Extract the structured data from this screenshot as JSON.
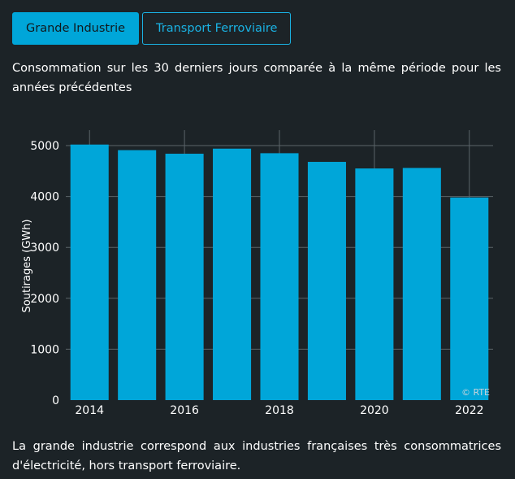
{
  "tabs": [
    {
      "label": "Grande Industrie",
      "active": true
    },
    {
      "label": "Transport Ferroviaire",
      "active": false
    }
  ],
  "intro_text": "Consommation sur les 30 derniers jours comparée à la même période pour les années précédentes",
  "footer_text": "La grande industrie correspond aux industries françaises très consommatrices d'électricité, hors transport ferroviaire.",
  "watermark": "© RTE",
  "colors": {
    "background": "#1c2327",
    "bar": "#00a6d9",
    "grid": "#5b6469",
    "tab_inactive": "#1ab2e3"
  },
  "chart_data": {
    "type": "bar",
    "categories": [
      "2014",
      "2015",
      "2016",
      "2017",
      "2018",
      "2019",
      "2020",
      "2021",
      "2022"
    ],
    "x_tick_labels": [
      "2014",
      "2016",
      "2018",
      "2020",
      "2022"
    ],
    "values": [
      5020,
      4910,
      4840,
      4940,
      4850,
      4680,
      4550,
      4560,
      3980
    ],
    "ylabel": "Soutirages (GWh)",
    "yticks": [
      0,
      1000,
      2000,
      3000,
      4000,
      5000
    ],
    "ylim": [
      0,
      5300
    ],
    "grid": true
  }
}
